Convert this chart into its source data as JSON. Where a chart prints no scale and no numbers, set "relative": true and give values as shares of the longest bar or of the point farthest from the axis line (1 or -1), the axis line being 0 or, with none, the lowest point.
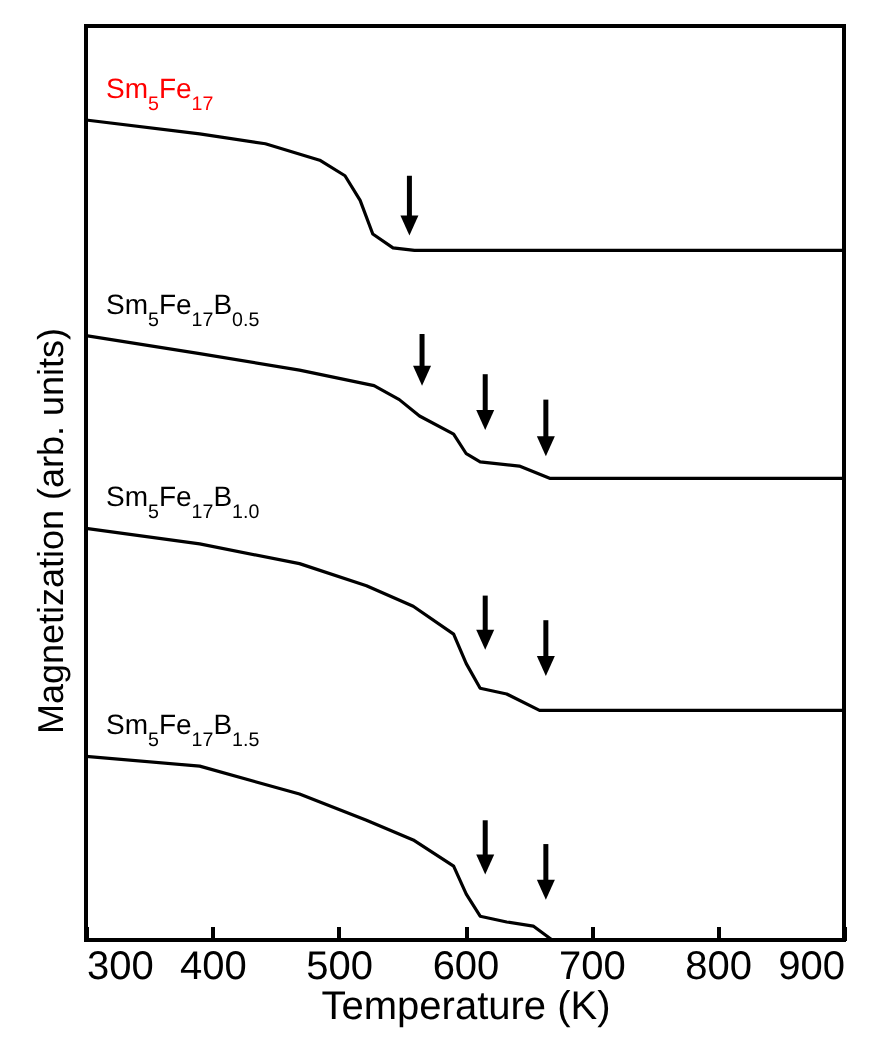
{
  "chart_data": {
    "type": "line",
    "relative": true,
    "xlabel": "Temperature (K)",
    "ylabel": "Magnetization  (arb. units)",
    "xlim": [
      300,
      900
    ],
    "xticks": [
      300,
      400,
      500,
      600,
      700,
      800,
      900
    ],
    "grid": false,
    "marker": "none",
    "line_style": "solid",
    "series": [
      {
        "name": "Sm$_{5}$Fe$_{17}$",
        "color": "#000000",
        "x": [
          300,
          390,
          442,
          485,
          505,
          517,
          527,
          543,
          560,
          900
        ],
        "values": [
          1.0,
          0.983,
          0.971,
          0.951,
          0.932,
          0.902,
          0.861,
          0.844,
          0.841,
          0.841
        ]
      },
      {
        "name": "Sm$_{5}$Fe$_{17}$B$_{0.5}$",
        "color": "#000000",
        "x": [
          300,
          390,
          469,
          528,
          548,
          564,
          591,
          601,
          612,
          643,
          667,
          900
        ],
        "values": [
          0.737,
          0.715,
          0.695,
          0.676,
          0.659,
          0.639,
          0.617,
          0.593,
          0.583,
          0.578,
          0.563,
          0.563
        ]
      },
      {
        "name": "Sm$_{5}$Fe$_{17}$B$_{1.0}$",
        "color": "#000000",
        "x": [
          300,
          390,
          469,
          522,
          559,
          591,
          601,
          612,
          633,
          659,
          900
        ],
        "values": [
          0.502,
          0.483,
          0.459,
          0.432,
          0.407,
          0.373,
          0.337,
          0.307,
          0.3,
          0.28,
          0.28
        ]
      },
      {
        "name": "Sm$_{5}$Fe$_{17}$B$_{1.5}$",
        "color": "#000000",
        "x": [
          300,
          390,
          469,
          522,
          559,
          591,
          601,
          612,
          633,
          654,
          669,
          900
        ],
        "values": [
          0.224,
          0.212,
          0.178,
          0.146,
          0.122,
          0.09,
          0.056,
          0.029,
          0.022,
          0.017,
          0,
          0
        ]
      }
    ]
  }
}
